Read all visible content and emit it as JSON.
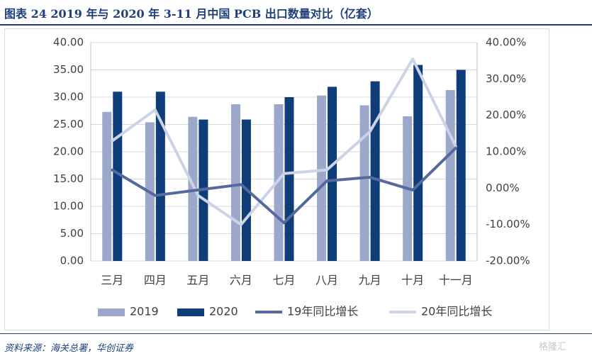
{
  "header": {
    "title": "图表 24   2019 年与 2020 年 3-11 月中国 PCB 出口数量对比（亿套）"
  },
  "footer": {
    "source": "资料来源：海关总署，华创证券",
    "watermark": "格隆汇"
  },
  "colors": {
    "bar2019": "#9ba8cc",
    "bar2020": "#0e3d7a",
    "line19": "#55699f",
    "line20": "#cdd3e6",
    "title": "#1f3f7a"
  },
  "chart_data": {
    "type": "bar",
    "title": "",
    "categories": [
      "三月",
      "四月",
      "五月",
      "六月",
      "七月",
      "八月",
      "九月",
      "十月",
      "十一月"
    ],
    "series": [
      {
        "name": "2019",
        "type": "bar",
        "axis": "left",
        "values": [
          27.3,
          25.4,
          26.4,
          28.7,
          28.7,
          30.3,
          28.5,
          26.5,
          31.3
        ]
      },
      {
        "name": "2020",
        "type": "bar",
        "axis": "left",
        "values": [
          31.0,
          31.0,
          25.9,
          25.9,
          30.0,
          31.9,
          32.9,
          35.9,
          35.0
        ]
      },
      {
        "name": "19年同比增长",
        "type": "line",
        "axis": "right",
        "values": [
          5.0,
          -2.0,
          -0.5,
          1.0,
          -9.5,
          2.0,
          3.0,
          -0.5,
          11.0
        ]
      },
      {
        "name": "20年同比增长",
        "type": "line",
        "axis": "right",
        "values": [
          13.0,
          21.5,
          -2.0,
          -10.0,
          4.0,
          5.0,
          15.5,
          35.5,
          11.5
        ]
      }
    ],
    "y_left": {
      "min": 0,
      "max": 40,
      "step": 5,
      "tick_labels": [
        "0.00",
        "5.00",
        "10.00",
        "15.00",
        "20.00",
        "25.00",
        "30.00",
        "35.00",
        "40.00"
      ]
    },
    "y_right": {
      "min": -20,
      "max": 40,
      "step": 10,
      "tick_labels": [
        "-20.00%",
        "-10.00%",
        "0.00%",
        "10.00%",
        "20.00%",
        "30.00%",
        "40.00%"
      ]
    },
    "grid": true,
    "legend_position": "bottom"
  }
}
